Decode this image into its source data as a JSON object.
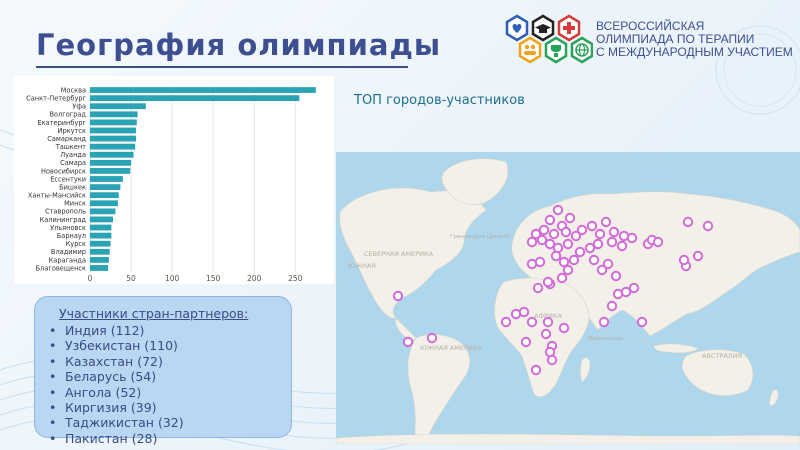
{
  "slide": {
    "title": "География олимпиады"
  },
  "logo": {
    "icons": [
      "heart-icon",
      "graduation-cap-icon",
      "medical-cross-icon",
      "people-icon",
      "trophy-icon",
      "globe-icon"
    ],
    "org_lines": [
      "ВСЕРОССИЙСКАЯ",
      "ОЛИМПИАДА ПО ТЕРАПИИ",
      "С МЕЖДУНАРОДНЫМ УЧАСТИЕМ"
    ]
  },
  "map": {
    "subtitle": "ТОП городов-участников",
    "labels": {
      "north_america": "СЕВЕРНАЯ АМЕРИКА",
      "south_america": "ЮЖНАЯ АМЕРИКА",
      "south_america_small": "ЮЖНАЯ",
      "greenland": "Гренландия (Дания)",
      "africa": "АФРИКА",
      "australia": "АВСТРАЛИЯ",
      "madagascar": "Мадагаскар"
    }
  },
  "chart_data": {
    "type": "bar",
    "orientation": "horizontal",
    "categories": [
      "Москва",
      "Санкт-Петербург",
      "Уфа",
      "Волгоград",
      "Екатеринбург",
      "Иркутск",
      "Самарканд",
      "Ташкент",
      "Луанда",
      "Самара",
      "Новосибирск",
      "Ессентуки",
      "Бишкек",
      "Ханты-Мансийск",
      "Минск",
      "Ставрополь",
      "Калининград",
      "Ульяновск",
      "Барнаул",
      "Курск",
      "Владимир",
      "Караганда",
      "Благовещенск"
    ],
    "values": [
      275,
      255,
      68,
      58,
      57,
      56,
      56,
      55,
      53,
      50,
      49,
      40,
      37,
      35,
      34,
      31,
      28,
      26,
      26,
      25,
      24,
      23,
      22
    ],
    "xticks": [
      0,
      50,
      100,
      150,
      200,
      250
    ],
    "xlim": [
      0,
      285
    ],
    "grid": "vertical",
    "colors": {
      "bar": "#2aa3b5"
    }
  },
  "partners": {
    "heading": "Участники стран-партнеров:",
    "items": [
      "Индия (112)",
      "Узбекистан (110)",
      "Казахстан (72)",
      "Беларусь (54)",
      "Ангола (52)",
      "Киргизия (39)",
      "Таджикистан (32)",
      "Пакистан (28)"
    ]
  },
  "colors": {
    "title": "#3d4f90",
    "marker": "#d46ad8",
    "map_water": "#aed7ee",
    "map_land": "#f2f0e8"
  }
}
